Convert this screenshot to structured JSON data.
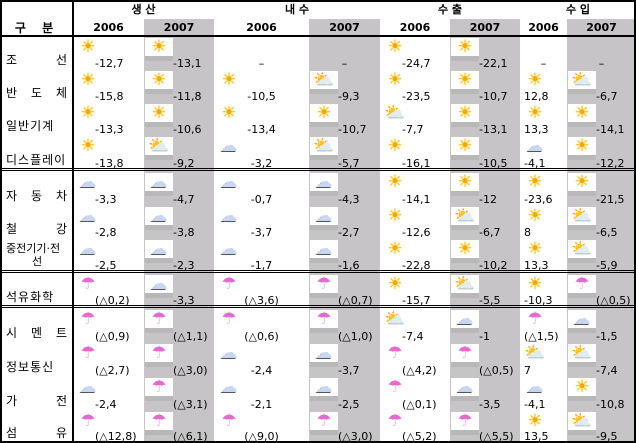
{
  "header": {
    "category": "구    분",
    "groups": [
      "생 산",
      "내 수",
      "수 출",
      "수 입"
    ],
    "years": [
      "2006",
      "2007"
    ]
  },
  "rows": [
    {
      "label": "조 선",
      "icons": [
        "sun",
        "sun",
        "none",
        "none",
        "sun",
        "sun",
        "none",
        "none"
      ],
      "values": [
        "-12,7",
        "-13,1",
        "–",
        "–",
        "-24,7",
        "-22,1",
        "–",
        "–"
      ]
    },
    {
      "label": "반 도 체",
      "icons": [
        "sun",
        "sun",
        "sun",
        "partly",
        "sun",
        "sun",
        "sun",
        "partly"
      ],
      "values": [
        "-15,8",
        "-11,8",
        "-10,5",
        "-9,3",
        "-23,5",
        "-10,7",
        "12,8",
        "-6,7"
      ]
    },
    {
      "label": "일반기계",
      "icons": [
        "sun",
        "sun",
        "sun",
        "sun",
        "partly",
        "sun",
        "sun",
        "sun"
      ],
      "values": [
        "-13,3",
        "-10,6",
        "-13,4",
        "-10,7",
        "-7,7",
        "-13,1",
        "13,3",
        "-14,1"
      ]
    },
    {
      "label": "디스플레이",
      "icons": [
        "sun",
        "partly",
        "cloud",
        "partly",
        "sun",
        "sun",
        "cloud",
        "sun"
      ],
      "values": [
        "-13,8",
        "-9,2",
        "-3,2",
        "-5,7",
        "-16,1",
        "-10,5",
        "-4,1",
        "-12,2"
      ]
    },
    {
      "label": "자 동 차",
      "icons": [
        "cloud",
        "cloud",
        "cloud",
        "cloud",
        "sun",
        "sun",
        "sun",
        "sun"
      ],
      "values": [
        "-3,3",
        "-4,7",
        "-0,7",
        "-4,3",
        "-14,1",
        "-12",
        "-23,6",
        "-21,5"
      ]
    },
    {
      "label": "철 강",
      "icons": [
        "cloud",
        "cloud",
        "cloud",
        "cloud",
        "sun",
        "partly",
        "sun",
        "partly"
      ],
      "values": [
        "-2,8",
        "-3,8",
        "-3,7",
        "-2,7",
        "-12,6",
        "-6,7",
        "8",
        "-6,5"
      ]
    },
    {
      "label": "중전기기·전선",
      "icons": [
        "cloud",
        "cloud",
        "cloud",
        "cloud",
        "sun",
        "sun",
        "sun",
        "partly"
      ],
      "values": [
        "-2,5",
        "-2,3",
        "-1,7",
        "-1,6",
        "-22,8",
        "-10,2",
        "13,3",
        "-5,9"
      ]
    },
    {
      "label": "석유화학",
      "icons": [
        "rain",
        "cloud",
        "rain",
        "rain",
        "sun",
        "partly",
        "sun",
        "rain"
      ],
      "values": [
        "(△0,2)",
        "-3,3",
        "(△3,6)",
        "(△0,7)",
        "-15,7",
        "-5,5",
        "-10,3",
        "(△0,5)"
      ]
    },
    {
      "label": "시 멘 트",
      "icons": [
        "rain",
        "rain",
        "rain",
        "rain",
        "partly",
        "cloud",
        "rain",
        "cloud"
      ],
      "values": [
        "(△0,9)",
        "(△1,1)",
        "(△0,6)",
        "(△1,0)",
        "-7,4",
        "-1",
        "(△1,5)",
        "-1,5"
      ]
    },
    {
      "label": "정보통신",
      "icons": [
        "rain",
        "rain",
        "cloud",
        "cloud",
        "rain",
        "rain",
        "partly",
        "partly"
      ],
      "values": [
        "(△2,7)",
        "(△3,0)",
        "-2,4",
        "-3,7",
        "(△4,2)",
        "(△0,5)",
        "7",
        "-7,4"
      ]
    },
    {
      "label": "가 전",
      "icons": [
        "cloud",
        "rain",
        "cloud",
        "cloud",
        "rain",
        "cloud",
        "cloud",
        "sun"
      ],
      "values": [
        "-2,4",
        "(△3,1)",
        "-2,1",
        "-2,5",
        "(△0,1)",
        "-3,5",
        "-4,1",
        "-10,8"
      ]
    },
    {
      "label": "섬 유",
      "icons": [
        "rain",
        "rain",
        "rain",
        "rain",
        "rain",
        "rain",
        "sun",
        "partly"
      ],
      "values": [
        "(△12,8)",
        "(△6,1)",
        "(△9,0)",
        "(△3,0)",
        "(△5,2)",
        "(△5,5)",
        "13,5",
        "-9,5"
      ]
    }
  ],
  "icon_glyphs": {
    "sun": "☀",
    "cloud": "☁",
    "partly": "⛅",
    "rain": "☂",
    "none": ""
  }
}
